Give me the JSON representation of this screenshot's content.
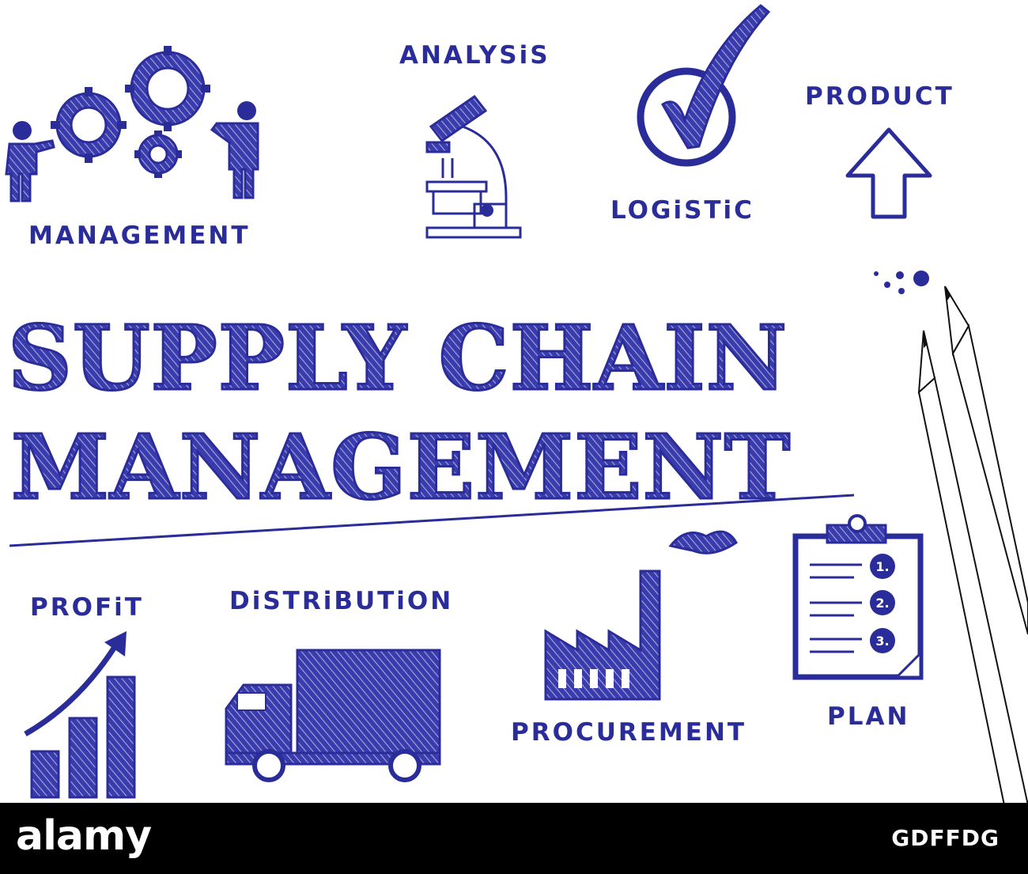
{
  "title": {
    "line1": "SUPPLY CHAIN",
    "line2": "MANAGEMENT"
  },
  "labels": {
    "management": "MANAGEMENT",
    "analysis": "ANALYSiS",
    "logistic": "LOGiSTiC",
    "product": "PRODUCT",
    "profit": "PROFiT",
    "distribution": "DiSTRiBUTiON",
    "procurement": "PROCUREMENT",
    "plan": "PLAN"
  },
  "checklist": [
    "1.",
    "2.",
    "3."
  ],
  "icons": [
    "gears-people-icon",
    "microscope-icon",
    "checkmark-circle-icon",
    "up-arrow-icon",
    "growth-chart-icon",
    "delivery-truck-icon",
    "factory-icon",
    "clipboard-checklist-icon",
    "pencils-icon"
  ],
  "colors": {
    "ink": "#2a2c9a",
    "background": "#ffffff",
    "footer": "#000000"
  },
  "footer": {
    "brand": "alamy",
    "image_code": "GDFFDG"
  }
}
